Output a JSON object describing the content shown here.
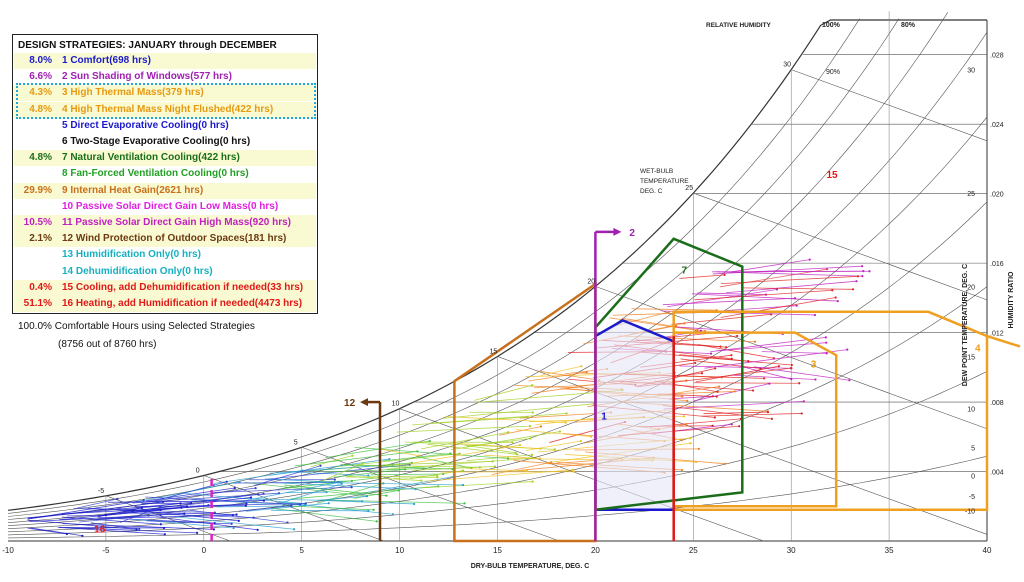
{
  "legend": {
    "title": "DESIGN STRATEGIES:  JANUARY through DECEMBER",
    "rows": [
      {
        "pct": "8.0%",
        "label": "1 Comfort(698 hrs)",
        "color": "#1a1acc",
        "bg": "#fafad2"
      },
      {
        "pct": "6.6%",
        "label": "2 Sun Shading of Windows(577 hrs)",
        "color": "#a020b0",
        "bg": "#ffffff"
      },
      {
        "pct": "4.3%",
        "label": "3 High Thermal Mass(379 hrs)",
        "color": "#e69a10",
        "bg": "#fafad2"
      },
      {
        "pct": "4.8%",
        "label": "4 High Thermal Mass Night Flushed(422 hrs)",
        "color": "#e69a10",
        "bg": "#fafad2"
      },
      {
        "pct": "",
        "label": "5 Direct Evaporative Cooling(0 hrs)",
        "color": "#1a1acc",
        "bg": "#ffffff"
      },
      {
        "pct": "",
        "label": "6 Two-Stage Evaporative Cooling(0 hrs)",
        "color": "#111111",
        "bg": "#ffffff"
      },
      {
        "pct": "4.8%",
        "label": "7 Natural Ventilation Cooling(422 hrs)",
        "color": "#1a6e1a",
        "bg": "#fafad2"
      },
      {
        "pct": "",
        "label": "8 Fan-Forced Ventilation Cooling(0 hrs)",
        "color": "#22a022",
        "bg": "#ffffff"
      },
      {
        "pct": "29.9%",
        "label": "9 Internal Heat Gain(2621 hrs)",
        "color": "#c8701c",
        "bg": "#fafad2"
      },
      {
        "pct": "",
        "label": "10 Passive Solar Direct Gain Low Mass(0 hrs)",
        "color": "#e020e0",
        "bg": "#ffffff"
      },
      {
        "pct": "10.5%",
        "label": "11 Passive Solar Direct Gain High Mass(920 hrs)",
        "color": "#c020c0",
        "bg": "#fafad2"
      },
      {
        "pct": "2.1%",
        "label": "12 Wind Protection of Outdoor Spaces(181 hrs)",
        "color": "#6b3a12",
        "bg": "#fafad2"
      },
      {
        "pct": "",
        "label": "13 Humidification Only(0 hrs)",
        "color": "#16b0c0",
        "bg": "#ffffff"
      },
      {
        "pct": "",
        "label": "14 Dehumidification Only(0 hrs)",
        "color": "#16b0c0",
        "bg": "#ffffff"
      },
      {
        "pct": "0.4%",
        "label": "15 Cooling, add Dehumidification if needed(33 hrs)",
        "color": "#e01818",
        "bg": "#fafad2"
      },
      {
        "pct": "51.1%",
        "label": "16 Heating, add Humidification if needed(4473 hrs)",
        "color": "#e01818",
        "bg": "#fafad2"
      }
    ],
    "summary_pct": "100.0%",
    "summary_text": "Comfortable Hours using Selected Strategies",
    "summary_detail": "(8756 out of 8760 hrs)"
  },
  "chart_data": {
    "type": "scatter",
    "xlabel": "DRY-BULB TEMPERATURE, DEG. C",
    "xlim": [
      -10,
      40
    ],
    "x_ticks": [
      "-10",
      "-5",
      "0",
      "5",
      "10",
      "15",
      "20",
      "25",
      "30",
      "35",
      "40"
    ],
    "ylabel": "HUMIDITY RATIO",
    "ylim": [
      0,
      0.03
    ],
    "y_ticks": [
      ".004",
      ".008",
      ".012",
      ".016",
      ".020",
      ".024",
      ".028"
    ],
    "dewpoint_label": "DEW POINT TEMPERATURE, DEG. C",
    "dewpoint_ticks": [
      "-10",
      "-5",
      "0",
      "5",
      "10",
      "15",
      "20",
      "25",
      "30"
    ],
    "wetbulb_label": [
      "WET-BULB",
      "TEMPERATURE",
      "DEG. C"
    ],
    "wetbulb_ticks": [
      "-5",
      "0",
      "5",
      "10",
      "15",
      "20",
      "25",
      "30"
    ],
    "rh_label": "RELATIVE HUMIDITY",
    "rh_ticks": [
      "100%",
      "90%",
      "80%"
    ],
    "zone_labels": [
      "1",
      "2",
      "3",
      "4",
      "7",
      "12",
      "15",
      "16"
    ],
    "zones": [
      {
        "id": "1",
        "color": "#1a1acc",
        "fill": "#e6e6f6",
        "points": [
          [
            20,
            0.0018
          ],
          [
            24,
            0.0018
          ],
          [
            24,
            0.0115
          ],
          [
            21.4,
            0.0127
          ],
          [
            20,
            0.0118
          ]
        ]
      },
      {
        "id": "7",
        "color": "#1a6e1a",
        "points": [
          [
            20,
            0.0123
          ],
          [
            24,
            0.0174
          ],
          [
            27.5,
            0.0158
          ],
          [
            27.5,
            0.0028
          ],
          [
            20,
            0.0018
          ]
        ]
      },
      {
        "id": "4",
        "color": "#f0a020",
        "points": [
          [
            24,
            0.0018
          ],
          [
            40,
            0.0018
          ],
          [
            40,
            0.0118
          ],
          [
            37,
            0.0132
          ],
          [
            24,
            0.0132
          ]
        ]
      },
      {
        "id": "3",
        "color": "#f0a020",
        "points": [
          [
            24,
            0.002
          ],
          [
            32.3,
            0.002
          ],
          [
            32.3,
            0.0107
          ],
          [
            30.2,
            0.012
          ],
          [
            24,
            0.012
          ]
        ]
      },
      {
        "id": "9",
        "color": "#c8701c",
        "points": [
          [
            12.8,
            0
          ],
          [
            20,
            0
          ],
          [
            20,
            0.0148
          ],
          [
            12.8,
            0.0092
          ]
        ]
      }
    ],
    "vertical_lines": [
      {
        "id": "16",
        "x": 0.4,
        "color": "#e020c0",
        "dash": true,
        "ymax": 0.0038
      },
      {
        "id": "12",
        "x": 9,
        "color": "#6b3a12",
        "ymax": 0.008
      },
      {
        "id": "2",
        "x": 20,
        "color": "#a020b0",
        "ymax": 0.0178
      },
      {
        "id": "15",
        "x": 24,
        "color": "#e01818",
        "ymax": 0.0118
      }
    ]
  }
}
